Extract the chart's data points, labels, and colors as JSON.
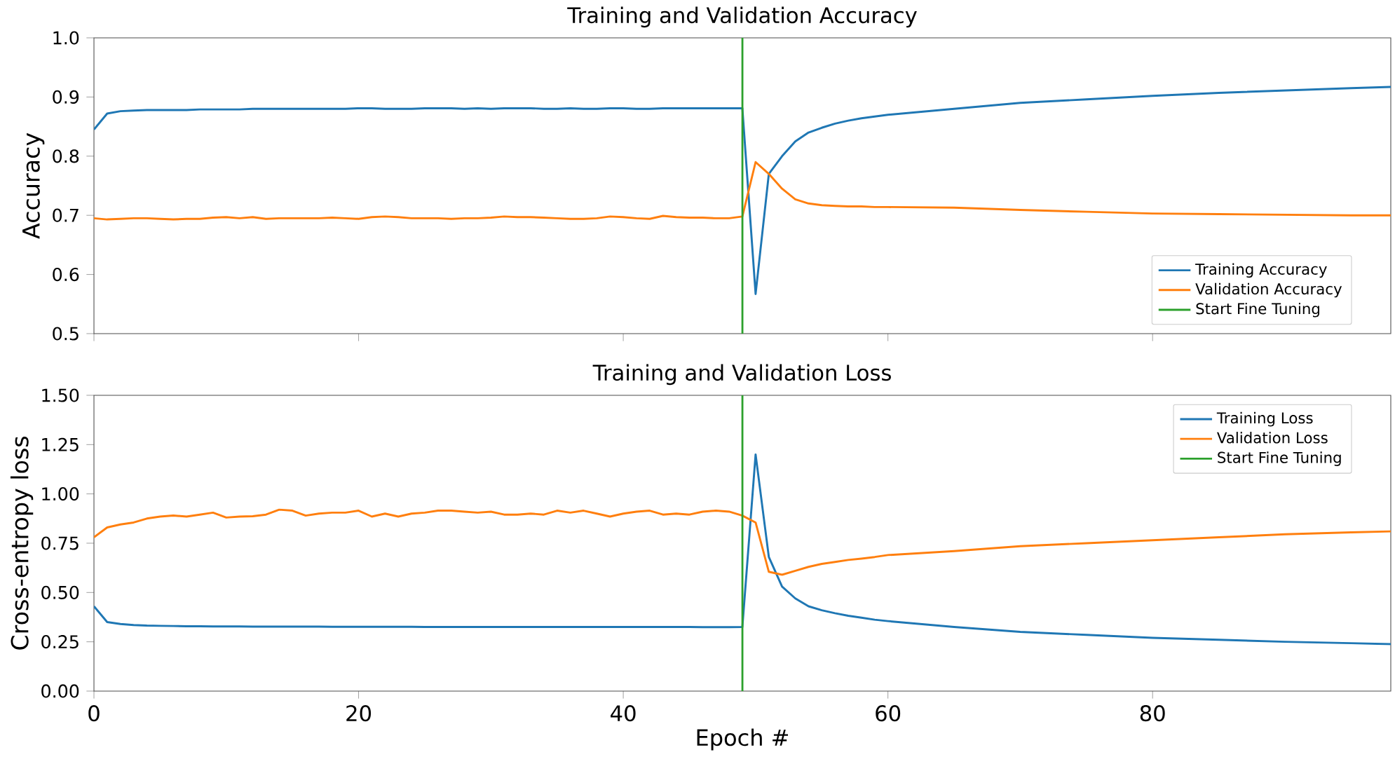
{
  "chart_data": [
    {
      "type": "line",
      "title": "Training and Validation Accuracy",
      "ylabel": "Accuracy",
      "xlim": [
        0,
        98
      ],
      "xticks": [
        {
          "value": 0,
          "label": null
        },
        {
          "value": 20,
          "label": null
        },
        {
          "value": 40,
          "label": null
        },
        {
          "value": 60,
          "label": null
        },
        {
          "value": 80,
          "label": null
        }
      ],
      "ylim": [
        0.5,
        1.0
      ],
      "yticks": [
        {
          "value": 0.5,
          "label": "0.5"
        },
        {
          "value": 0.6,
          "label": "0.6"
        },
        {
          "value": 0.7,
          "label": "0.7"
        },
        {
          "value": 0.8,
          "label": "0.8"
        },
        {
          "value": 0.9,
          "label": "0.9"
        },
        {
          "value": 1.0,
          "label": "1.0"
        }
      ],
      "tick_labels": "y",
      "legend": "bottom right",
      "grid": false,
      "marker": "none",
      "line_style": "solid",
      "series": [
        {
          "name": "Training Accuracy",
          "color": "#1f77b4",
          "x": [
            0,
            1,
            2,
            3,
            4,
            5,
            6,
            7,
            8,
            9,
            10,
            11,
            12,
            13,
            14,
            15,
            16,
            17,
            18,
            19,
            20,
            21,
            22,
            23,
            24,
            25,
            26,
            27,
            28,
            29,
            30,
            31,
            32,
            33,
            34,
            35,
            36,
            37,
            38,
            39,
            40,
            41,
            42,
            43,
            44,
            45,
            46,
            47,
            48,
            49,
            50,
            51,
            52,
            53,
            54,
            55,
            56,
            57,
            58,
            59,
            60,
            65,
            70,
            75,
            80,
            85,
            90,
            95,
            98
          ],
          "values": [
            0.845,
            0.872,
            0.876,
            0.877,
            0.878,
            0.878,
            0.878,
            0.878,
            0.879,
            0.879,
            0.879,
            0.879,
            0.88,
            0.88,
            0.88,
            0.88,
            0.88,
            0.88,
            0.88,
            0.88,
            0.881,
            0.881,
            0.88,
            0.88,
            0.88,
            0.881,
            0.881,
            0.881,
            0.88,
            0.881,
            0.88,
            0.881,
            0.881,
            0.881,
            0.88,
            0.88,
            0.881,
            0.88,
            0.88,
            0.881,
            0.881,
            0.88,
            0.88,
            0.881,
            0.881,
            0.881,
            0.881,
            0.881,
            0.881,
            0.881,
            0.567,
            0.77,
            0.8,
            0.825,
            0.84,
            0.848,
            0.855,
            0.86,
            0.864,
            0.867,
            0.87,
            0.88,
            0.89,
            0.896,
            0.902,
            0.907,
            0.911,
            0.915,
            0.917
          ]
        },
        {
          "name": "Validation Accuracy",
          "color": "#ff7f0e",
          "x": [
            0,
            1,
            2,
            3,
            4,
            5,
            6,
            7,
            8,
            9,
            10,
            11,
            12,
            13,
            14,
            15,
            16,
            17,
            18,
            19,
            20,
            21,
            22,
            23,
            24,
            25,
            26,
            27,
            28,
            29,
            30,
            31,
            32,
            33,
            34,
            35,
            36,
            37,
            38,
            39,
            40,
            41,
            42,
            43,
            44,
            45,
            46,
            47,
            48,
            49,
            50,
            51,
            52,
            53,
            54,
            55,
            56,
            57,
            58,
            59,
            60,
            65,
            70,
            75,
            80,
            85,
            90,
            95,
            98
          ],
          "values": [
            0.695,
            0.693,
            0.694,
            0.695,
            0.695,
            0.694,
            0.693,
            0.694,
            0.694,
            0.696,
            0.697,
            0.695,
            0.697,
            0.694,
            0.695,
            0.695,
            0.695,
            0.695,
            0.696,
            0.695,
            0.694,
            0.697,
            0.698,
            0.697,
            0.695,
            0.695,
            0.695,
            0.694,
            0.695,
            0.695,
            0.696,
            0.698,
            0.697,
            0.697,
            0.696,
            0.695,
            0.694,
            0.694,
            0.695,
            0.698,
            0.697,
            0.695,
            0.694,
            0.699,
            0.697,
            0.696,
            0.696,
            0.695,
            0.695,
            0.698,
            0.79,
            0.77,
            0.745,
            0.727,
            0.72,
            0.717,
            0.716,
            0.715,
            0.715,
            0.714,
            0.714,
            0.713,
            0.709,
            0.706,
            0.703,
            0.702,
            0.701,
            0.7,
            0.7
          ]
        },
        {
          "name": "Start Fine Tuning",
          "color": "#2ca02c",
          "x": [
            49,
            49
          ],
          "values": [
            0.5,
            1.0
          ]
        }
      ]
    },
    {
      "type": "line",
      "title": "Training and Validation Loss",
      "ylabel": "Cross-entropy loss",
      "xlabel": "Epoch #",
      "xlim": [
        0,
        98
      ],
      "xticks": [
        0,
        20,
        40,
        60,
        80
      ],
      "ylim": [
        0,
        1.5
      ],
      "yticks": [
        {
          "value": 0,
          "label": "0.00"
        },
        {
          "value": 0.25,
          "label": "0.25"
        },
        {
          "value": 0.5,
          "label": "0.50"
        },
        {
          "value": 0.75,
          "label": "0.75"
        },
        {
          "value": 1.0,
          "label": "1.00"
        },
        {
          "value": 1.25,
          "label": "1.25"
        },
        {
          "value": 1.5,
          "label": "1.50"
        }
      ],
      "legend": "top right",
      "grid": false,
      "marker": "none",
      "line_style": "solid",
      "series": [
        {
          "name": "Training Loss",
          "color": "#1f77b4",
          "x": [
            0,
            1,
            2,
            3,
            4,
            5,
            6,
            7,
            8,
            9,
            10,
            11,
            12,
            13,
            14,
            15,
            16,
            17,
            18,
            19,
            20,
            21,
            22,
            23,
            24,
            25,
            26,
            27,
            28,
            29,
            30,
            31,
            32,
            33,
            34,
            35,
            36,
            37,
            38,
            39,
            40,
            41,
            42,
            43,
            44,
            45,
            46,
            47,
            48,
            49,
            50,
            51,
            52,
            53,
            54,
            55,
            56,
            57,
            58,
            59,
            60,
            65,
            70,
            75,
            80,
            85,
            90,
            95,
            98
          ],
          "values": [
            0.43,
            0.35,
            0.34,
            0.335,
            0.332,
            0.331,
            0.33,
            0.329,
            0.329,
            0.328,
            0.328,
            0.328,
            0.327,
            0.327,
            0.327,
            0.327,
            0.327,
            0.327,
            0.326,
            0.326,
            0.326,
            0.326,
            0.326,
            0.326,
            0.326,
            0.325,
            0.325,
            0.325,
            0.325,
            0.325,
            0.325,
            0.325,
            0.325,
            0.325,
            0.325,
            0.325,
            0.325,
            0.325,
            0.325,
            0.325,
            0.325,
            0.325,
            0.325,
            0.325,
            0.325,
            0.325,
            0.324,
            0.324,
            0.324,
            0.325,
            1.2,
            0.68,
            0.53,
            0.47,
            0.43,
            0.41,
            0.395,
            0.382,
            0.372,
            0.362,
            0.355,
            0.325,
            0.3,
            0.285,
            0.27,
            0.26,
            0.25,
            0.243,
            0.238
          ]
        },
        {
          "name": "Validation Loss",
          "color": "#ff7f0e",
          "x": [
            0,
            1,
            2,
            3,
            4,
            5,
            6,
            7,
            8,
            9,
            10,
            11,
            12,
            13,
            14,
            15,
            16,
            17,
            18,
            19,
            20,
            21,
            22,
            23,
            24,
            25,
            26,
            27,
            28,
            29,
            30,
            31,
            32,
            33,
            34,
            35,
            36,
            37,
            38,
            39,
            40,
            41,
            42,
            43,
            44,
            45,
            46,
            47,
            48,
            49,
            50,
            51,
            52,
            53,
            54,
            55,
            56,
            57,
            58,
            59,
            60,
            65,
            70,
            75,
            80,
            85,
            90,
            95,
            98
          ],
          "values": [
            0.78,
            0.83,
            0.845,
            0.855,
            0.875,
            0.885,
            0.89,
            0.885,
            0.895,
            0.905,
            0.88,
            0.885,
            0.887,
            0.895,
            0.92,
            0.915,
            0.89,
            0.9,
            0.905,
            0.905,
            0.915,
            0.885,
            0.9,
            0.885,
            0.9,
            0.905,
            0.915,
            0.915,
            0.91,
            0.905,
            0.91,
            0.895,
            0.895,
            0.9,
            0.895,
            0.915,
            0.905,
            0.915,
            0.9,
            0.885,
            0.9,
            0.91,
            0.915,
            0.895,
            0.9,
            0.895,
            0.91,
            0.915,
            0.91,
            0.89,
            0.855,
            0.605,
            0.59,
            0.61,
            0.63,
            0.645,
            0.655,
            0.665,
            0.672,
            0.68,
            0.69,
            0.71,
            0.735,
            0.75,
            0.765,
            0.78,
            0.795,
            0.805,
            0.81
          ]
        },
        {
          "name": "Start Fine Tuning",
          "color": "#2ca02c",
          "x": [
            49,
            49
          ],
          "values": [
            0,
            1.5
          ]
        }
      ]
    }
  ]
}
